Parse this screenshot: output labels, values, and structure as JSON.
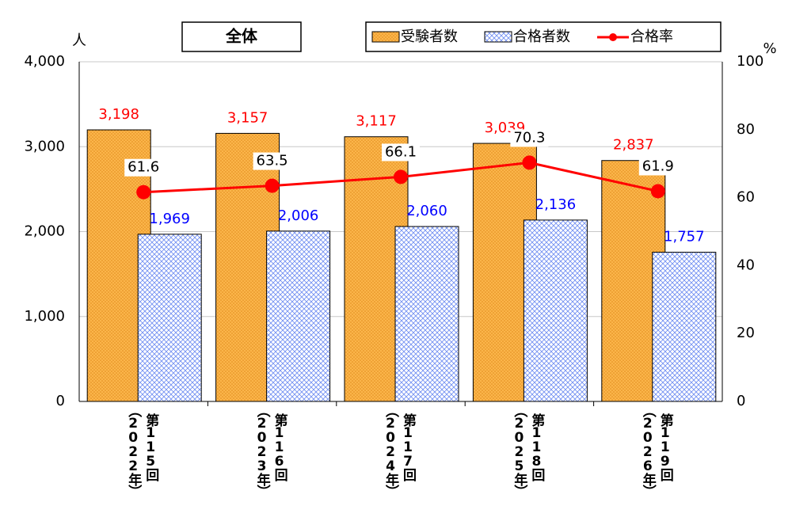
{
  "chart_data": {
    "type": "bar-line",
    "title": "全体",
    "y_unit": "人",
    "y2_unit": "%",
    "categories": [
      "第115回",
      "第116回",
      "第117回",
      "第118回",
      "第119回"
    ],
    "category_years": [
      "（2022年）",
      "（2023年）",
      "（2024年）",
      "（2025年）",
      "（2026年）"
    ],
    "series": [
      {
        "name": "受験者数",
        "type": "bar",
        "color": "#f7a840",
        "label_color": "#ff0000",
        "pattern": "dots",
        "values": [
          3198,
          3157,
          3117,
          3039,
          2837
        ],
        "value_labels": [
          "3,198",
          "3,157",
          "3,117",
          "3,039",
          "2,837"
        ]
      },
      {
        "name": "合格者数",
        "type": "bar",
        "color": "#4a6cf0",
        "label_color": "#0000ff",
        "pattern": "crosshatch",
        "values": [
          1969,
          2006,
          2060,
          2136,
          1757
        ],
        "value_labels": [
          "1,969",
          "2,006",
          "2,060",
          "2,136",
          "1,757"
        ]
      },
      {
        "name": "合格率",
        "type": "line",
        "axis": "y2",
        "color": "#ff0000",
        "label_color": "#000000",
        "values": [
          61.6,
          63.5,
          66.1,
          70.3,
          61.9
        ]
      }
    ],
    "ylim": [
      0,
      4000
    ],
    "yticks": [
      0,
      {
        "value": 1000,
        "label": "1,000"
      },
      {
        "value": 2000,
        "label": "2,000"
      },
      {
        "value": 3000,
        "label": "3,000"
      },
      {
        "value": 4000,
        "label": "4,000"
      }
    ],
    "y2lim": [
      0,
      100
    ],
    "y2ticks": [
      0,
      20,
      40,
      60,
      80,
      100
    ],
    "grid": true
  }
}
